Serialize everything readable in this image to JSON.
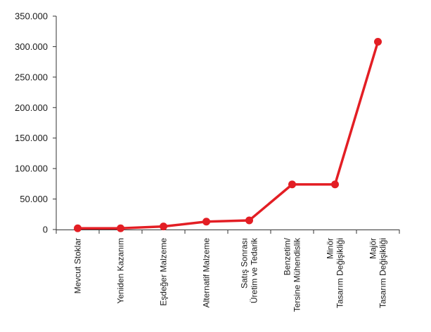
{
  "chart_data": {
    "type": "line",
    "title": "",
    "xlabel": "",
    "ylabel": "",
    "ylim": [
      0,
      350000
    ],
    "yticks": [
      {
        "value": 0,
        "label": "0"
      },
      {
        "value": 50000,
        "label": "50.000"
      },
      {
        "value": 100000,
        "label": "100.000"
      },
      {
        "value": 150000,
        "label": "150.000"
      },
      {
        "value": 200000,
        "label": "200.000"
      },
      {
        "value": 250000,
        "label": "250.000"
      },
      {
        "value": 300000,
        "label": "300.000"
      },
      {
        "value": 350000,
        "label": "350.000"
      }
    ],
    "categories": [
      [
        "Mevcut Stoklar"
      ],
      [
        "Yeniden Kazanım"
      ],
      [
        "Eşdeğer Malzeme"
      ],
      [
        "Alternatif Malzeme"
      ],
      [
        "Satış Sonrası",
        "Üretim ve Tedarik"
      ],
      [
        "Benzetim/",
        "Tersine Mühendislik"
      ],
      [
        "Minör",
        "Tasarım Değişikliği"
      ],
      [
        "Majör",
        "Tasarım Değişikliği"
      ]
    ],
    "series": [
      {
        "values": [
          2000,
          2000,
          5000,
          13000,
          15000,
          74000,
          74000,
          308000
        ],
        "color": "#e31e24"
      }
    ],
    "grid": false,
    "legend": "none"
  }
}
